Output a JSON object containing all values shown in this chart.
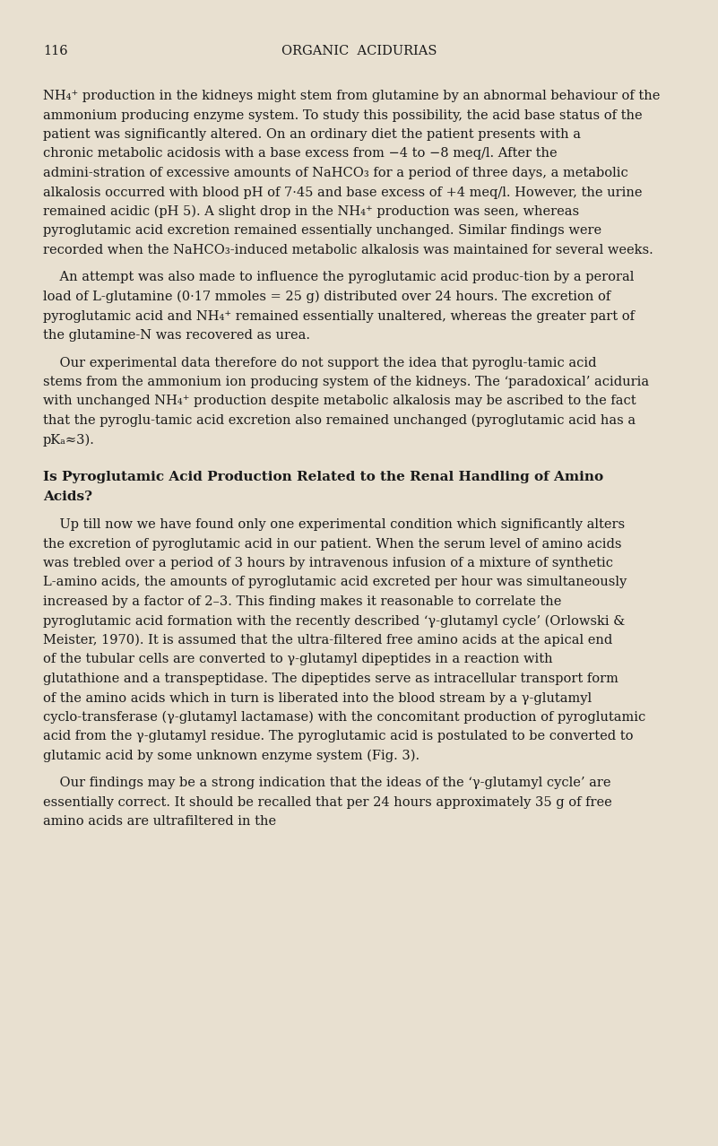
{
  "background_color": "#e8e0d0",
  "text_color": "#1a1a1a",
  "page_number": "116",
  "header_title": "ORGANIC  ACIDURIAS",
  "paragraph1": "NH₄⁺ production in the kidneys might stem from glutamine by an abnormal behaviour of the ammonium producing enzyme system. To study this possibility, the acid base status of the patient was significantly altered. On an ordinary diet the patient presents with a chronic metabolic acidosis with a base excess from −4 to −8 meq/l. After the admini­stration of excessive amounts of NaHCO₃ for a period of three days, a metabolic alkalosis occurred with blood pH of 7·45 and base excess of +4 meq/l. However, the urine remained acidic (pH 5). A slight drop in the NH₄⁺ production was seen, whereas pyroglutamic acid excretion remained essentially unchanged. Similar findings were recorded when the NaHCO₃-induced metabolic alkalosis was maintained for several weeks.",
  "paragraph2": "An attempt was also made to influence the pyroglutamic acid produc­tion by a peroral load of L-glutamine (0·17 mmoles = 25 g) distributed over 24 hours. The excretion of pyroglutamic acid and NH₄⁺ remained essentially unaltered, whereas the greater part of the glutamine-N was recovered as urea.",
  "paragraph3": "Our experimental data therefore do not support the idea that pyroglu­tamic acid stems from the ammonium ion producing system of the kidneys. The ‘paradoxical’ aciduria with unchanged NH₄⁺ production despite metabolic alkalosis may be ascribed to the fact that the pyroglu­tamic acid excretion also remained unchanged (pyroglutamic acid has a pKₐ≈3).",
  "section_heading_line1": "Is Pyroglutamic Acid Production Related to the Renal Handling of Amino",
  "section_heading_line2": "Acids?",
  "paragraph4": "Up till now we have found only one experimental condition which significantly alters the excretion of pyroglutamic acid in our patient. When the serum level of amino acids was trebled over a period of 3 hours by intravenous infusion of a mixture of synthetic L-amino acids, the amounts of pyroglutamic acid excreted per hour was simultaneously increased by a factor of 2–3. This finding makes it reasonable to correlate the pyroglutamic acid formation with the recently described ‘γ-glutamyl cycle’ (Orlowski & Meister, 1970). It is assumed that the ultra-filtered free amino acids at the apical end of the tubular cells are converted to γ-glutamyl dipeptides in a reaction with glutathione and a transpeptidase. The dipeptides serve as intracellular transport form of the amino acids which in turn is liberated into the blood stream by a γ-glutamyl cyclo­transferase (γ-glutamyl lactamase) with the concomitant production of pyroglutamic acid from the γ-glutamyl residue. The pyroglutamic acid is postulated to be converted to glutamic acid by some unknown enzyme system (Fig. 3).",
  "paragraph5": "Our findings may be a strong indication that the ideas of the ‘γ-glutamyl cycle’ are essentially correct. It should be recalled that per 24 hours approximately 35 g of free amino acids are ultrafiltered in the"
}
